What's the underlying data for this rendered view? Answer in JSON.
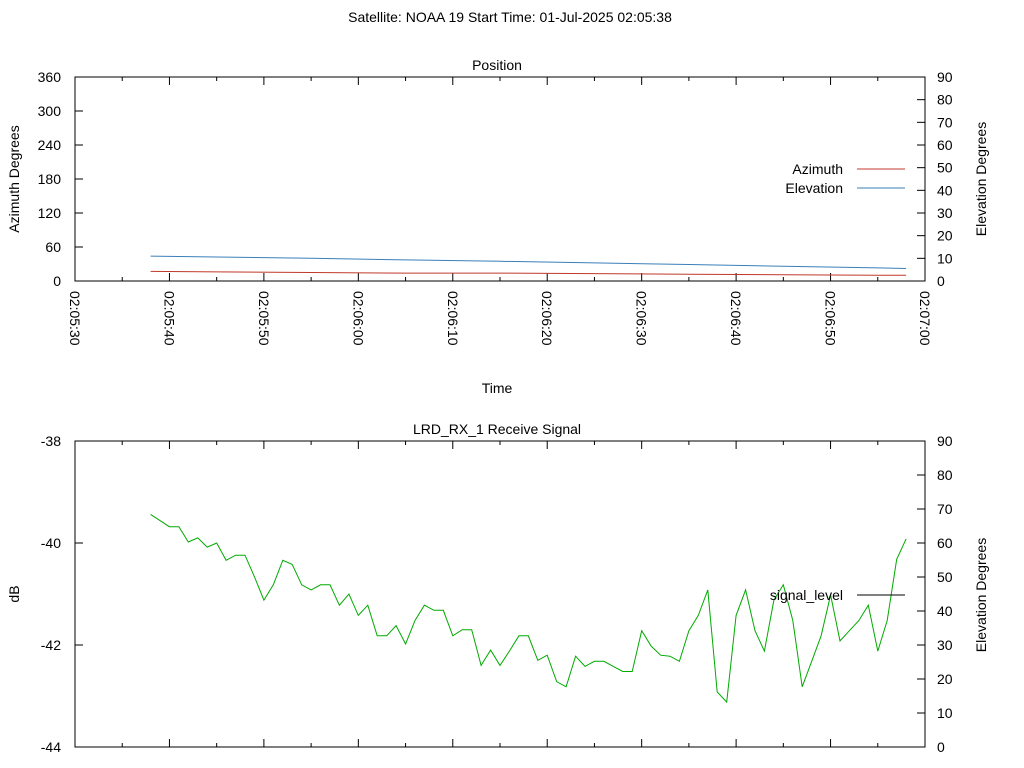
{
  "suptitle": "Satellite: NOAA 19    Start Time: 01-Jul-2025 02:05:38",
  "chart_data": [
    {
      "type": "line",
      "title": "Position",
      "xlabel": "Time",
      "ylabel": "Azimuth Degrees",
      "y2label": "Elevation Degrees",
      "x_ticks": [
        "02:05:30",
        "02:05:40",
        "02:05:50",
        "02:06:00",
        "02:06:10",
        "02:06:20",
        "02:06:30",
        "02:06:40",
        "02:06:50",
        "02:07:00"
      ],
      "xlim_seconds": [
        0,
        90
      ],
      "ylim": [
        0,
        360
      ],
      "y_ticks": [
        "0",
        "60",
        "120",
        "180",
        "240",
        "300",
        "360"
      ],
      "y2lim": [
        0,
        90
      ],
      "y2_ticks": [
        "0",
        "10",
        "20",
        "30",
        "40",
        "50",
        "60",
        "70",
        "80",
        "90"
      ],
      "legend_position": "right",
      "series": [
        {
          "name": "Azimuth",
          "axis": "left",
          "color": "#c0392b",
          "x_seconds": [
            8,
            15,
            25,
            35,
            45,
            55,
            65,
            75,
            85,
            88
          ],
          "values": [
            17,
            16,
            15,
            14,
            14,
            13,
            12,
            11,
            10,
            10
          ]
        },
        {
          "name": "Elevation",
          "axis": "right",
          "color": "#3a7fb8",
          "x_seconds": [
            8,
            15,
            25,
            35,
            45,
            55,
            65,
            75,
            85,
            88
          ],
          "values": [
            11,
            10.6,
            10,
            9.3,
            8.7,
            8,
            7.3,
            6.5,
            5.8,
            5.5
          ]
        }
      ]
    },
    {
      "type": "line",
      "title": "LRD_RX_1 Receive Signal",
      "ylabel": "dB",
      "y2label": "Elevation Degrees",
      "ylim": [
        -44,
        -38
      ],
      "y_ticks": [
        "-44",
        "-42",
        "-40",
        "-38"
      ],
      "y2lim": [
        0,
        90
      ],
      "y2_ticks": [
        "0",
        "10",
        "20",
        "30",
        "40",
        "50",
        "60",
        "70",
        "80",
        "90"
      ],
      "xlim_seconds": [
        0,
        90
      ],
      "legend_position": "right",
      "series": [
        {
          "name": "signal_level",
          "color": "#00aa00",
          "legend_color": "#000000",
          "x_seconds": [
            8,
            9,
            10,
            11,
            12,
            13,
            14,
            15,
            16,
            17,
            18,
            19,
            20,
            21,
            22,
            23,
            24,
            25,
            26,
            27,
            28,
            29,
            30,
            31,
            32,
            33,
            34,
            35,
            36,
            37,
            38,
            39,
            40,
            41,
            42,
            43,
            44,
            45,
            46,
            47,
            48,
            49,
            50,
            51,
            52,
            53,
            54,
            55,
            56,
            57,
            58,
            59,
            60,
            61,
            62,
            63,
            64,
            65,
            66,
            67,
            68,
            69,
            70,
            71,
            72,
            73,
            74,
            75,
            76,
            77,
            78,
            79,
            80,
            81,
            82,
            83,
            84,
            85,
            86,
            87,
            88
          ],
          "values": [
            -39.44,
            -39.56,
            -39.68,
            -39.68,
            -39.98,
            -39.9,
            -40.08,
            -40.0,
            -40.34,
            -40.24,
            -40.24,
            -40.66,
            -41.12,
            -40.82,
            -40.34,
            -40.42,
            -40.82,
            -40.92,
            -40.82,
            -40.82,
            -41.22,
            -41.0,
            -41.42,
            -41.22,
            -41.82,
            -41.82,
            -41.62,
            -41.98,
            -41.52,
            -41.22,
            -41.32,
            -41.32,
            -41.82,
            -41.7,
            -41.7,
            -42.4,
            -42.1,
            -42.4,
            -42.12,
            -41.82,
            -41.82,
            -42.3,
            -42.2,
            -42.72,
            -42.82,
            -42.22,
            -42.42,
            -42.32,
            -42.32,
            -42.42,
            -42.52,
            -42.52,
            -41.72,
            -42.02,
            -42.2,
            -42.22,
            -42.32,
            -41.72,
            -41.42,
            -40.92,
            -42.92,
            -43.12,
            -41.42,
            -40.92,
            -41.72,
            -42.12,
            -41.12,
            -40.82,
            -41.52,
            -42.82,
            -42.32,
            -41.82,
            -41.02,
            -41.92,
            -41.72,
            -41.52,
            -41.22,
            -42.12,
            -41.52,
            -40.32,
            -39.92
          ]
        }
      ]
    }
  ]
}
